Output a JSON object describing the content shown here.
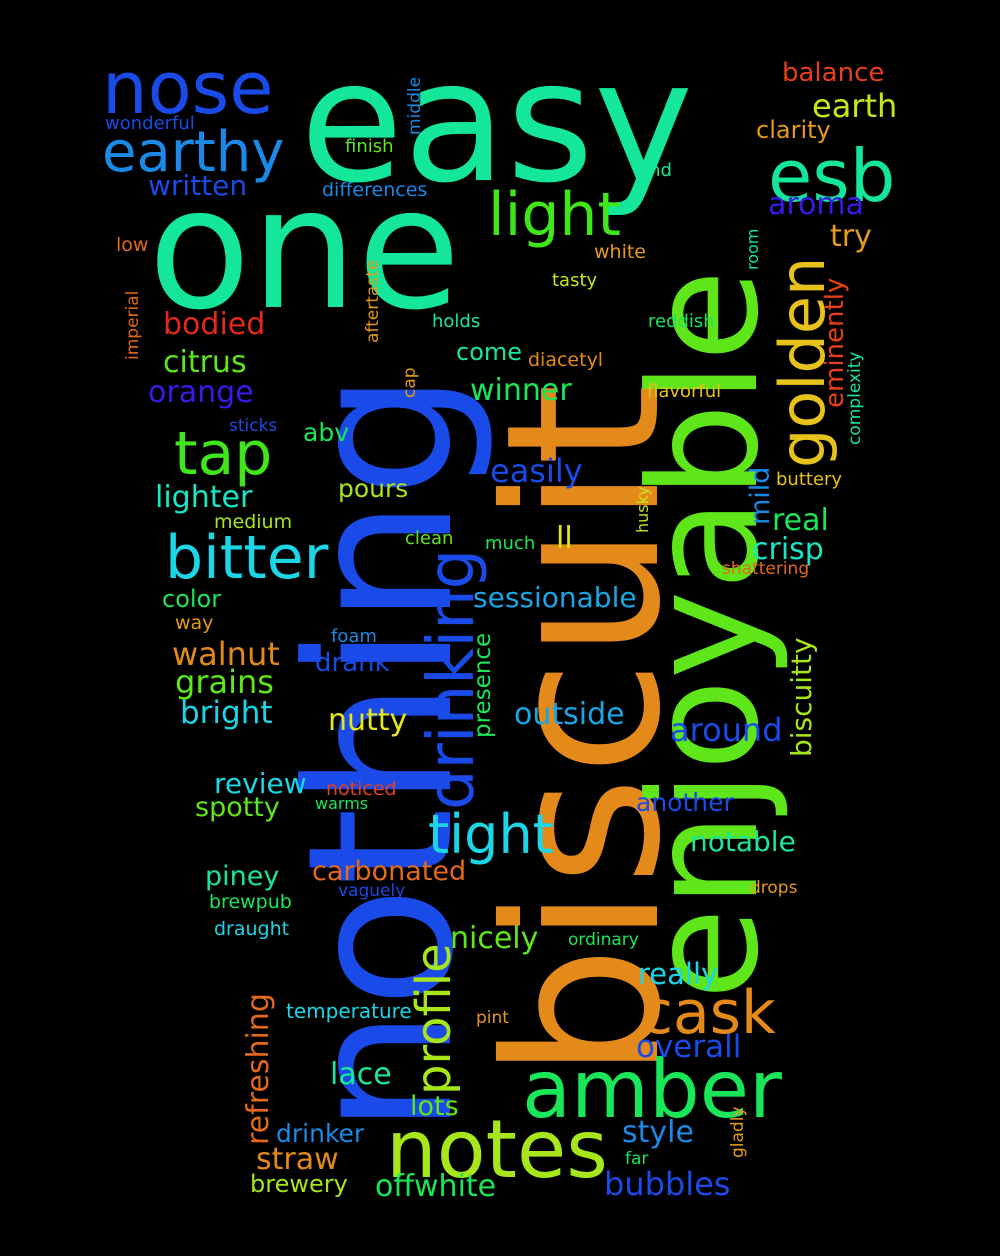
{
  "words": [
    {
      "text": "easy",
      "color": "#14e69a"
    },
    {
      "text": "one",
      "color": "#14e69a"
    },
    {
      "text": "nothing",
      "color": "#1a4ae8"
    },
    {
      "text": "biscuit",
      "color": "#e38a1a"
    },
    {
      "text": "enjoyable",
      "color": "#5ee61a"
    },
    {
      "text": "notes",
      "color": "#a6e61a"
    },
    {
      "text": "amber",
      "color": "#1ae65a"
    },
    {
      "text": "nose",
      "color": "#1a4ae8"
    },
    {
      "text": "esb",
      "color": "#14e69a"
    },
    {
      "text": "earthy",
      "color": "#1a8ae6"
    },
    {
      "text": "light",
      "color": "#3ee61a"
    },
    {
      "text": "golden",
      "color": "#e6c21a"
    },
    {
      "text": "drinking",
      "color": "#1a4ae8"
    },
    {
      "text": "tight",
      "color": "#1ad6e6"
    },
    {
      "text": "bitter",
      "color": "#1ad6e6"
    },
    {
      "text": "cask",
      "color": "#e38a1a"
    },
    {
      "text": "tap",
      "color": "#3ee61a"
    },
    {
      "text": "profile",
      "color": "#a6e61a"
    },
    {
      "text": "refreshing",
      "color": "#e36a1a"
    },
    {
      "text": "balance",
      "color": "#e6401a"
    },
    {
      "text": "earth",
      "color": "#c6e61a"
    },
    {
      "text": "clarity",
      "color": "#e69a1a"
    },
    {
      "text": "aroma",
      "color": "#3a1ae6"
    },
    {
      "text": "try",
      "color": "#e69a1a"
    },
    {
      "text": "eminently",
      "color": "#e6401a"
    },
    {
      "text": "written",
      "color": "#1a4ae8"
    },
    {
      "text": "wonderful",
      "color": "#1a4ae8"
    },
    {
      "text": "middle",
      "color": "#1a8ae6"
    },
    {
      "text": "finish",
      "color": "#5ee61a"
    },
    {
      "text": "differences",
      "color": "#1a8ae6"
    },
    {
      "text": "end",
      "color": "#1ae69a"
    },
    {
      "text": "low",
      "color": "#e36a1a"
    },
    {
      "text": "white",
      "color": "#e69a1a"
    },
    {
      "text": "tasty",
      "color": "#c6e61a"
    },
    {
      "text": "room",
      "color": "#14e69a"
    },
    {
      "text": "imperial",
      "color": "#e36a1a"
    },
    {
      "text": "aftertaste",
      "color": "#e69a1a"
    },
    {
      "text": "bodied",
      "color": "#e6281a"
    },
    {
      "text": "holds",
      "color": "#1ae69a"
    },
    {
      "text": "reddish",
      "color": "#1ae65a"
    },
    {
      "text": "complexity",
      "color": "#1ae69a"
    },
    {
      "text": "citrus",
      "color": "#5ee61a"
    },
    {
      "text": "cap",
      "color": "#e69a1a"
    },
    {
      "text": "come",
      "color": "#1ae69a"
    },
    {
      "text": "diacetyl",
      "color": "#e38a1a"
    },
    {
      "text": "orange",
      "color": "#3a1ae6"
    },
    {
      "text": "winner",
      "color": "#1ae65a"
    },
    {
      "text": "flavorful",
      "color": "#e6c21a"
    },
    {
      "text": "sticks",
      "color": "#1a4ae8"
    },
    {
      "text": "abv",
      "color": "#1ae65a"
    },
    {
      "text": "mild",
      "color": "#1a8ae6"
    },
    {
      "text": "easily",
      "color": "#1a4ae8"
    },
    {
      "text": "buttery",
      "color": "#e6c21a"
    },
    {
      "text": "lighter",
      "color": "#1ae6c6"
    },
    {
      "text": "pours",
      "color": "#a6e61a"
    },
    {
      "text": "husky",
      "color": "#c6e61a"
    },
    {
      "text": "real",
      "color": "#1ae65a"
    },
    {
      "text": "medium",
      "color": "#a6e61a"
    },
    {
      "text": "clean",
      "color": "#5ee61a"
    },
    {
      "text": "much",
      "color": "#1ae65a"
    },
    {
      "text": "ll",
      "color": "#e6e61a"
    },
    {
      "text": "crisp",
      "color": "#1ae6c6"
    },
    {
      "text": "shattering",
      "color": "#e36a1a"
    },
    {
      "text": "color",
      "color": "#1ae65a"
    },
    {
      "text": "sessionable",
      "color": "#1aa6e6"
    },
    {
      "text": "biscuitty",
      "color": "#a6e61a"
    },
    {
      "text": "way",
      "color": "#e69a1a"
    },
    {
      "text": "foam",
      "color": "#1a8ae6"
    },
    {
      "text": "presence",
      "color": "#1ae65a"
    },
    {
      "text": "walnut",
      "color": "#e38a1a"
    },
    {
      "text": "drank",
      "color": "#1a4ae8"
    },
    {
      "text": "grains",
      "color": "#5ee61a"
    },
    {
      "text": "bright",
      "color": "#1ad6e6"
    },
    {
      "text": "nutty",
      "color": "#e6e61a"
    },
    {
      "text": "outside",
      "color": "#1aa6e6"
    },
    {
      "text": "around",
      "color": "#1a4ae8"
    },
    {
      "text": "review",
      "color": "#1ad6e6"
    },
    {
      "text": "noticed",
      "color": "#e6401a"
    },
    {
      "text": "spotty",
      "color": "#5ee61a"
    },
    {
      "text": "warms",
      "color": "#1ae65a"
    },
    {
      "text": "another",
      "color": "#1a4ae8"
    },
    {
      "text": "notable",
      "color": "#1ae69a"
    },
    {
      "text": "piney",
      "color": "#1ae69a"
    },
    {
      "text": "carbonated",
      "color": "#e36a1a"
    },
    {
      "text": "vaguely",
      "color": "#1a4ae8"
    },
    {
      "text": "drops",
      "color": "#e69a1a"
    },
    {
      "text": "brewpub",
      "color": "#1ae65a"
    },
    {
      "text": "draught",
      "color": "#1ad6e6"
    },
    {
      "text": "nicely",
      "color": "#5ee61a"
    },
    {
      "text": "ordinary",
      "color": "#1ae65a"
    },
    {
      "text": "really",
      "color": "#1ad6e6"
    },
    {
      "text": "temperature",
      "color": "#1ad6e6"
    },
    {
      "text": "pint",
      "color": "#e69a1a"
    },
    {
      "text": "overall",
      "color": "#1a4ae8"
    },
    {
      "text": "lace",
      "color": "#1ae69a"
    },
    {
      "text": "lots",
      "color": "#5ee61a"
    },
    {
      "text": "gladly",
      "color": "#e69a1a"
    },
    {
      "text": "drinker",
      "color": "#1a8ae6"
    },
    {
      "text": "style",
      "color": "#1a8ae6"
    },
    {
      "text": "far",
      "color": "#1ae65a"
    },
    {
      "text": "straw",
      "color": "#e38a1a"
    },
    {
      "text": "brewery",
      "color": "#a6e61a"
    },
    {
      "text": "offwhite",
      "color": "#1ae65a"
    },
    {
      "text": "bubbles",
      "color": "#1a4ae8"
    }
  ]
}
